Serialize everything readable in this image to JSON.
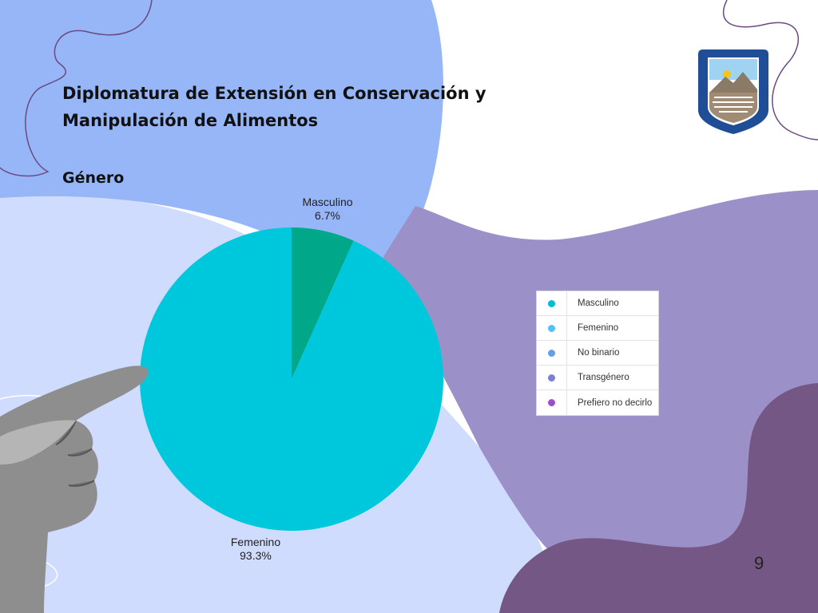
{
  "title_lines": [
    "Diplomatura de Extensión en Conservación y",
    "Manipulación de Alimentos"
  ],
  "subtitle": "Género",
  "page_number": "9",
  "chart_data": {
    "type": "pie",
    "slices": [
      {
        "name": "Masculino",
        "value": 6.7,
        "label": "6.7%",
        "color": "#00a88a"
      },
      {
        "name": "Femenino",
        "value": 93.3,
        "label": "93.3%",
        "color": "#00c8dc"
      }
    ]
  },
  "legend": [
    {
      "label": "Masculino",
      "color": "#00bcd4"
    },
    {
      "label": "Femenino",
      "color": "#4fc3f7"
    },
    {
      "label": "No binario",
      "color": "#64a0e6"
    },
    {
      "label": "Transgénero",
      "color": "#7c7fd8"
    },
    {
      "label": "Prefiero no decirlo",
      "color": "#9b4fc9"
    }
  ],
  "colors": {
    "blue_blob": "#97b6f8",
    "light_blob": "#d0dcfd",
    "purple_blob": "#9b91c8",
    "dark_purple_blob": "#745784",
    "accent_line": "#6a4a82"
  },
  "logo": {
    "name": "university-seal-icon"
  }
}
